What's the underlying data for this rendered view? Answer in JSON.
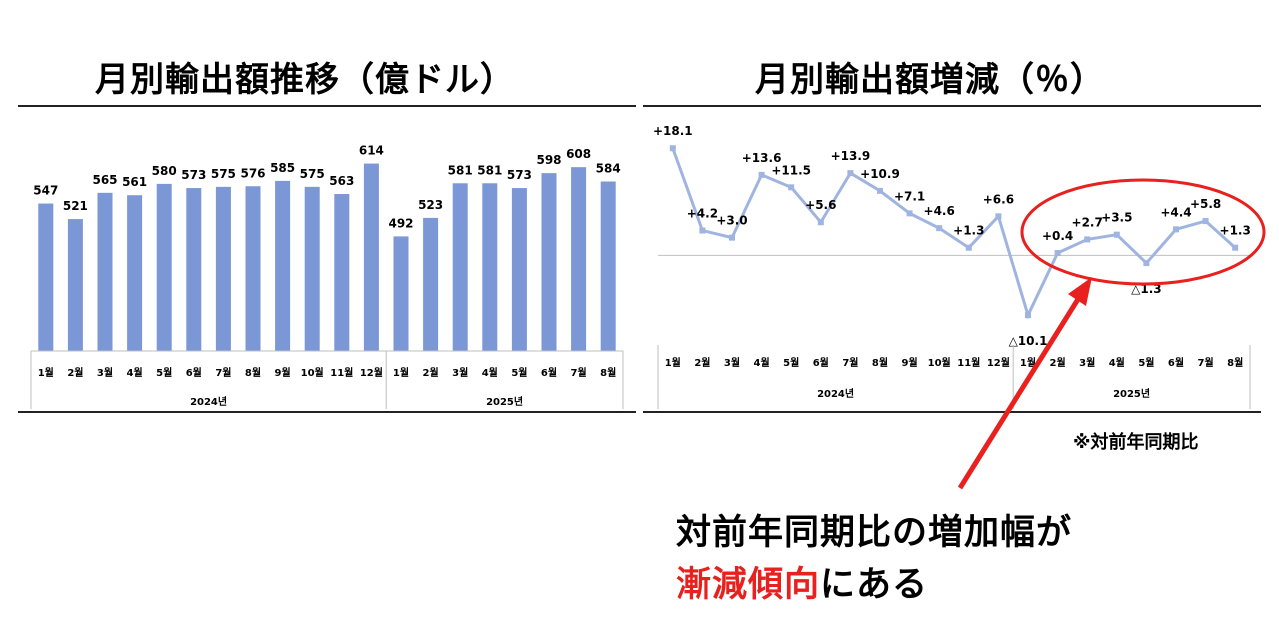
{
  "left_title": "月別輸出額推移（億ドル）",
  "right_title": "月別輸出額増減（％）",
  "note": "※対前年同期比",
  "callout": {
    "line1": "対前年同期比の増加幅が",
    "line2_red": "漸減傾向",
    "line2_rest": "にある"
  },
  "colors": {
    "bar": "#7b97d6",
    "line": "#9fb4df",
    "arrow": "#e8201e",
    "circle": "#e8201e"
  },
  "chart_data": [
    {
      "type": "bar",
      "categories": [
        "1월",
        "2월",
        "3월",
        "4월",
        "5월",
        "6월",
        "7월",
        "8월",
        "9월",
        "10월",
        "11월",
        "12월",
        "1월",
        "2월",
        "3월",
        "4월",
        "5월",
        "6월",
        "7월",
        "8월"
      ],
      "groups": [
        {
          "label": "2024년",
          "count": 12
        },
        {
          "label": "2025년",
          "count": 8
        }
      ],
      "values": [
        547,
        521,
        565,
        561,
        580,
        573,
        575,
        576,
        585,
        575,
        563,
        614,
        492,
        523,
        581,
        581,
        573,
        598,
        608,
        584
      ],
      "value_labels": [
        "547",
        "521",
        "565",
        "561",
        "580",
        "573",
        "575",
        "576",
        "585",
        "575",
        "563",
        "614",
        "492",
        "523",
        "581",
        "581",
        "573",
        "598",
        "608",
        "584"
      ],
      "ylim": [
        300,
        620
      ],
      "grid": false
    },
    {
      "type": "line",
      "categories": [
        "1월",
        "2월",
        "3월",
        "4월",
        "5월",
        "6월",
        "7월",
        "8월",
        "9월",
        "10월",
        "11월",
        "12월",
        "1월",
        "2월",
        "3월",
        "4월",
        "5월",
        "6월",
        "7월",
        "8월"
      ],
      "groups": [
        {
          "label": "2024년",
          "count": 12
        },
        {
          "label": "2025년",
          "count": 8
        }
      ],
      "values": [
        18.1,
        4.2,
        3.0,
        13.6,
        11.5,
        5.6,
        13.9,
        10.9,
        7.1,
        4.6,
        1.3,
        6.6,
        -10.1,
        0.4,
        2.7,
        3.5,
        -1.3,
        4.4,
        5.8,
        1.3
      ],
      "value_labels": [
        "+18.1",
        "+4.2",
        "+3.0",
        "+13.6",
        "+11.5",
        "+5.6",
        "+13.9",
        "+10.9",
        "+7.1",
        "+4.6",
        "+1.3",
        "+6.6",
        "△10.1",
        "+0.4",
        "+2.7",
        "+3.5",
        "△1.3",
        "+4.4",
        "+5.8",
        "+1.3"
      ],
      "ylim": [
        -12,
        20
      ],
      "grid": false,
      "highlight": "last 8 months circled"
    }
  ]
}
